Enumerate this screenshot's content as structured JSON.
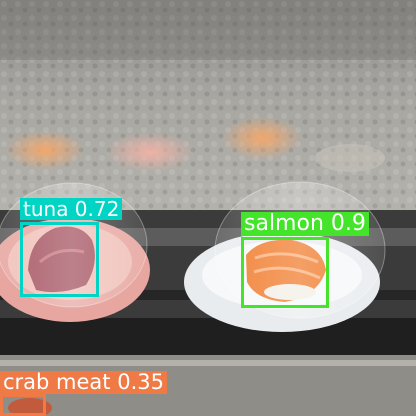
{
  "image": {
    "description_colors": {
      "glass_wall": "#9a9a96",
      "counter_rail": "#3a3a3a",
      "plate_pink": "#e7a6a0",
      "plate_white": "#e9ecef",
      "salmon": "#f07a2a",
      "tuna": "#a3505e"
    }
  },
  "detections": [
    {
      "label": "tuna 0.72",
      "color": "#00d4c4"
    },
    {
      "label": "salmon 0.9",
      "color": "#44e42a"
    },
    {
      "label": "crab meat 0.35",
      "color": "#f07a45"
    }
  ]
}
